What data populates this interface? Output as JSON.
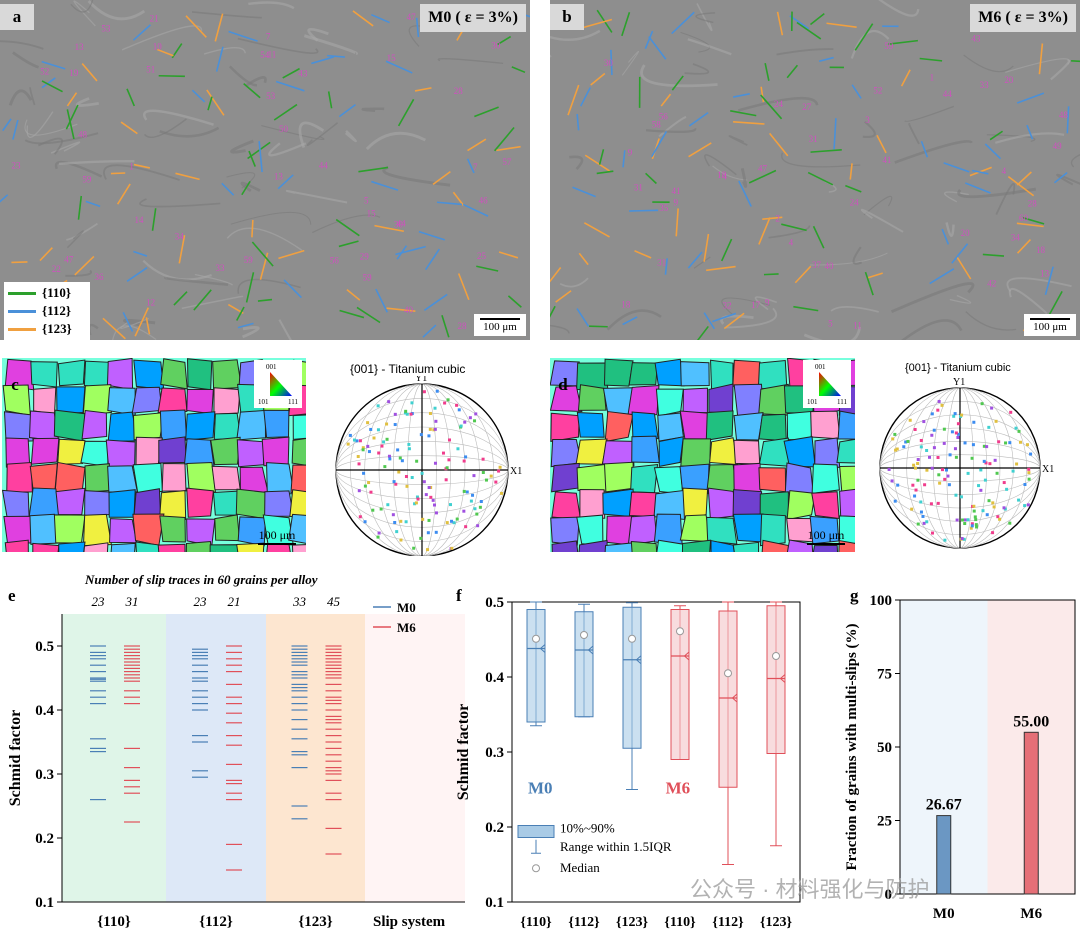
{
  "panels": {
    "a": {
      "label": "a",
      "title": "M0 ( ε = 3%)",
      "scale": "100 μm"
    },
    "b": {
      "label": "b",
      "title": "M6 ( ε = 3%)",
      "scale": "100 μm"
    },
    "c": {
      "label": "c",
      "scale": "100 μm",
      "pf_title": "{001} - Titanium cubic",
      "ipf_labels": [
        "001",
        "101",
        "111"
      ]
    },
    "d": {
      "label": "d",
      "scale": "100 μm",
      "pf_title": "{001} - Titanium cubic",
      "ipf_labels": [
        "001",
        "101",
        "111"
      ]
    },
    "e": {
      "label": "e"
    },
    "f": {
      "label": "f"
    },
    "g": {
      "label": "g"
    }
  },
  "legend_a": {
    "items": [
      {
        "label": "{110}",
        "color": "#2ca02c"
      },
      {
        "label": "{112}",
        "color": "#4a90d9"
      },
      {
        "label": "{123}",
        "color": "#f0a040"
      }
    ]
  },
  "pole_axes": {
    "y": "Y1",
    "x": "X1"
  },
  "colors": {
    "m0": "#4a7fb5",
    "m6": "#e0505a",
    "m0_fill": "#a9cbe6",
    "m6_fill": "#f4c5c8"
  },
  "watermark": "公众号 · 材料强化与防护",
  "chart_data": [
    {
      "id": "e",
      "type": "scatter",
      "title": "Number of slip traces in 60 grains per alloy",
      "ylabel": "Schmid factor",
      "xlabel": "Slip system",
      "ylim": [
        0.1,
        0.55
      ],
      "yticks": [
        0.1,
        0.2,
        0.3,
        0.4,
        0.5
      ],
      "categories": [
        "{110}",
        "{112}",
        "{123}"
      ],
      "counts": {
        "M0": [
          23,
          23,
          33
        ],
        "M6": [
          31,
          21,
          45
        ]
      },
      "legend": [
        "M0",
        "M6"
      ],
      "series": [
        {
          "name": "M0",
          "group": "{110}",
          "values": [
            0.5,
            0.49,
            0.485,
            0.48,
            0.47,
            0.46,
            0.45,
            0.448,
            0.445,
            0.43,
            0.42,
            0.41,
            0.355,
            0.34,
            0.335,
            0.26
          ]
        },
        {
          "name": "M6",
          "group": "{110}",
          "values": [
            0.5,
            0.495,
            0.49,
            0.485,
            0.48,
            0.475,
            0.47,
            0.465,
            0.46,
            0.455,
            0.45,
            0.445,
            0.43,
            0.42,
            0.41,
            0.34,
            0.31,
            0.29,
            0.28,
            0.27,
            0.225
          ]
        },
        {
          "name": "M0",
          "group": "{112}",
          "values": [
            0.495,
            0.49,
            0.485,
            0.48,
            0.47,
            0.46,
            0.45,
            0.445,
            0.43,
            0.42,
            0.41,
            0.4,
            0.36,
            0.35,
            0.305,
            0.295
          ]
        },
        {
          "name": "M6",
          "group": "{112}",
          "values": [
            0.5,
            0.49,
            0.48,
            0.47,
            0.46,
            0.44,
            0.42,
            0.41,
            0.395,
            0.38,
            0.36,
            0.345,
            0.315,
            0.29,
            0.285,
            0.27,
            0.26,
            0.19,
            0.15
          ]
        },
        {
          "name": "M0",
          "group": "{123}",
          "values": [
            0.5,
            0.495,
            0.49,
            0.485,
            0.48,
            0.475,
            0.47,
            0.46,
            0.455,
            0.45,
            0.44,
            0.435,
            0.43,
            0.42,
            0.41,
            0.4,
            0.385,
            0.37,
            0.355,
            0.335,
            0.33,
            0.31,
            0.25,
            0.23
          ]
        },
        {
          "name": "M6",
          "group": "{123}",
          "values": [
            0.5,
            0.495,
            0.49,
            0.485,
            0.48,
            0.475,
            0.47,
            0.465,
            0.46,
            0.455,
            0.45,
            0.44,
            0.43,
            0.42,
            0.415,
            0.41,
            0.4,
            0.39,
            0.385,
            0.38,
            0.37,
            0.36,
            0.35,
            0.34,
            0.33,
            0.32,
            0.31,
            0.305,
            0.3,
            0.29,
            0.27,
            0.26,
            0.215,
            0.175
          ]
        }
      ]
    },
    {
      "id": "f",
      "type": "box",
      "ylabel": "Schmid factor",
      "ylim": [
        0.1,
        0.5
      ],
      "yticks": [
        0.1,
        0.2,
        0.3,
        0.4,
        0.5
      ],
      "categories": [
        "{110}",
        "{112}",
        "{123}",
        "{110}",
        "{112}",
        "{123}"
      ],
      "group_labels": [
        "M0",
        "M6"
      ],
      "legend": [
        "10%~90%",
        "Range within 1.5IQR",
        "Median"
      ],
      "boxes": [
        {
          "alloy": "M0",
          "p10": 0.34,
          "p90": 0.49,
          "median": 0.438,
          "mean": 0.451,
          "min": 0.335,
          "max": 0.5
        },
        {
          "alloy": "M0",
          "p10": 0.347,
          "p90": 0.487,
          "median": 0.436,
          "mean": 0.456,
          "min": 0.347,
          "max": 0.497
        },
        {
          "alloy": "M0",
          "p10": 0.305,
          "p90": 0.493,
          "median": 0.423,
          "mean": 0.451,
          "min": 0.25,
          "max": 0.499
        },
        {
          "alloy": "M6",
          "p10": 0.29,
          "p90": 0.49,
          "median": 0.428,
          "mean": 0.461,
          "min": 0.29,
          "max": 0.495
        },
        {
          "alloy": "M6",
          "p10": 0.253,
          "p90": 0.488,
          "median": 0.372,
          "mean": 0.405,
          "min": 0.15,
          "max": 0.5
        },
        {
          "alloy": "M6",
          "p10": 0.298,
          "p90": 0.495,
          "median": 0.398,
          "mean": 0.428,
          "min": 0.175,
          "max": 0.5
        }
      ]
    },
    {
      "id": "g",
      "type": "bar",
      "ylabel": "Fraction of grains with multi-slips (%)",
      "ylim": [
        0,
        100
      ],
      "yticks": [
        0,
        25,
        50,
        75,
        100
      ],
      "categories": [
        "M0",
        "M6"
      ],
      "values": [
        26.67,
        55.0
      ],
      "value_labels": [
        "26.67",
        "55.00"
      ]
    }
  ]
}
